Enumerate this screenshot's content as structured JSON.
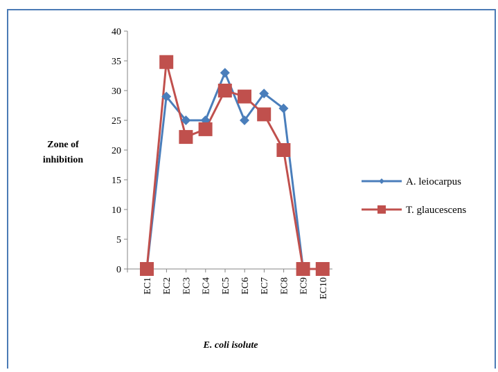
{
  "colors": {
    "series1": "#4a7ebb",
    "series2": "#c0504d",
    "border": "#4a7ab5"
  },
  "chart_data": {
    "type": "line",
    "categories": [
      "EC1",
      "EC2",
      "EC3",
      "EC4",
      "EC5",
      "EC6",
      "EC7",
      "EC8",
      "EC9",
      "EC10"
    ],
    "series": [
      {
        "name": "A. leiocarpus",
        "marker": "diamond",
        "values": [
          0,
          29,
          25,
          25,
          33,
          25,
          29.5,
          27,
          0,
          0
        ]
      },
      {
        "name": "T. glaucescens",
        "marker": "square",
        "values": [
          0,
          34.8,
          22.2,
          23.5,
          30,
          29,
          26,
          20,
          0,
          0
        ]
      }
    ],
    "ylabel_lines": [
      "Zone of",
      "inhibition"
    ],
    "xlabel": "E. coli isolute",
    "ylim": [
      0,
      40
    ],
    "yticks": [
      0,
      5,
      10,
      15,
      20,
      25,
      30,
      35,
      40
    ],
    "grid": false,
    "legend_position": "right"
  }
}
